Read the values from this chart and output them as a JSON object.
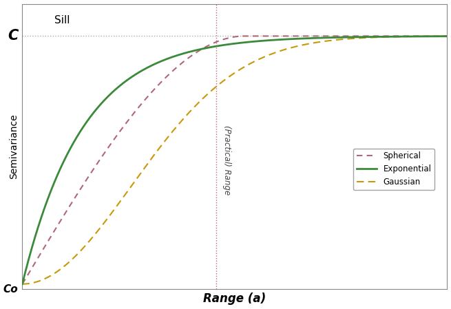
{
  "title": "",
  "xlabel": "Range (a)",
  "ylabel": "Semivariance",
  "sill_label": "Sill",
  "nugget_label": "Co",
  "sill_y_label": "C",
  "range_label": "(Practical) Range",
  "sill": 1.0,
  "nugget": 0.0,
  "range_val": 0.48,
  "xlim": [
    0,
    1.05
  ],
  "ylim": [
    -0.02,
    1.13
  ],
  "spherical_color": "#b06878",
  "exponential_color": "#3a8a3a",
  "gaussian_color": "#c8980a",
  "sill_line_color": "#aaaaaa",
  "range_line_color": "#c06878",
  "bg_color": "#ffffff",
  "legend_labels": [
    "Spherical",
    "Exponential",
    "Gaussian"
  ],
  "xlabel_fontsize": 12,
  "ylabel_fontsize": 10,
  "sill_fontsize": 11,
  "label_fontsize": 10,
  "exp_range_param": 0.15,
  "sph_range_param": 0.55,
  "gau_range_param": 0.38
}
